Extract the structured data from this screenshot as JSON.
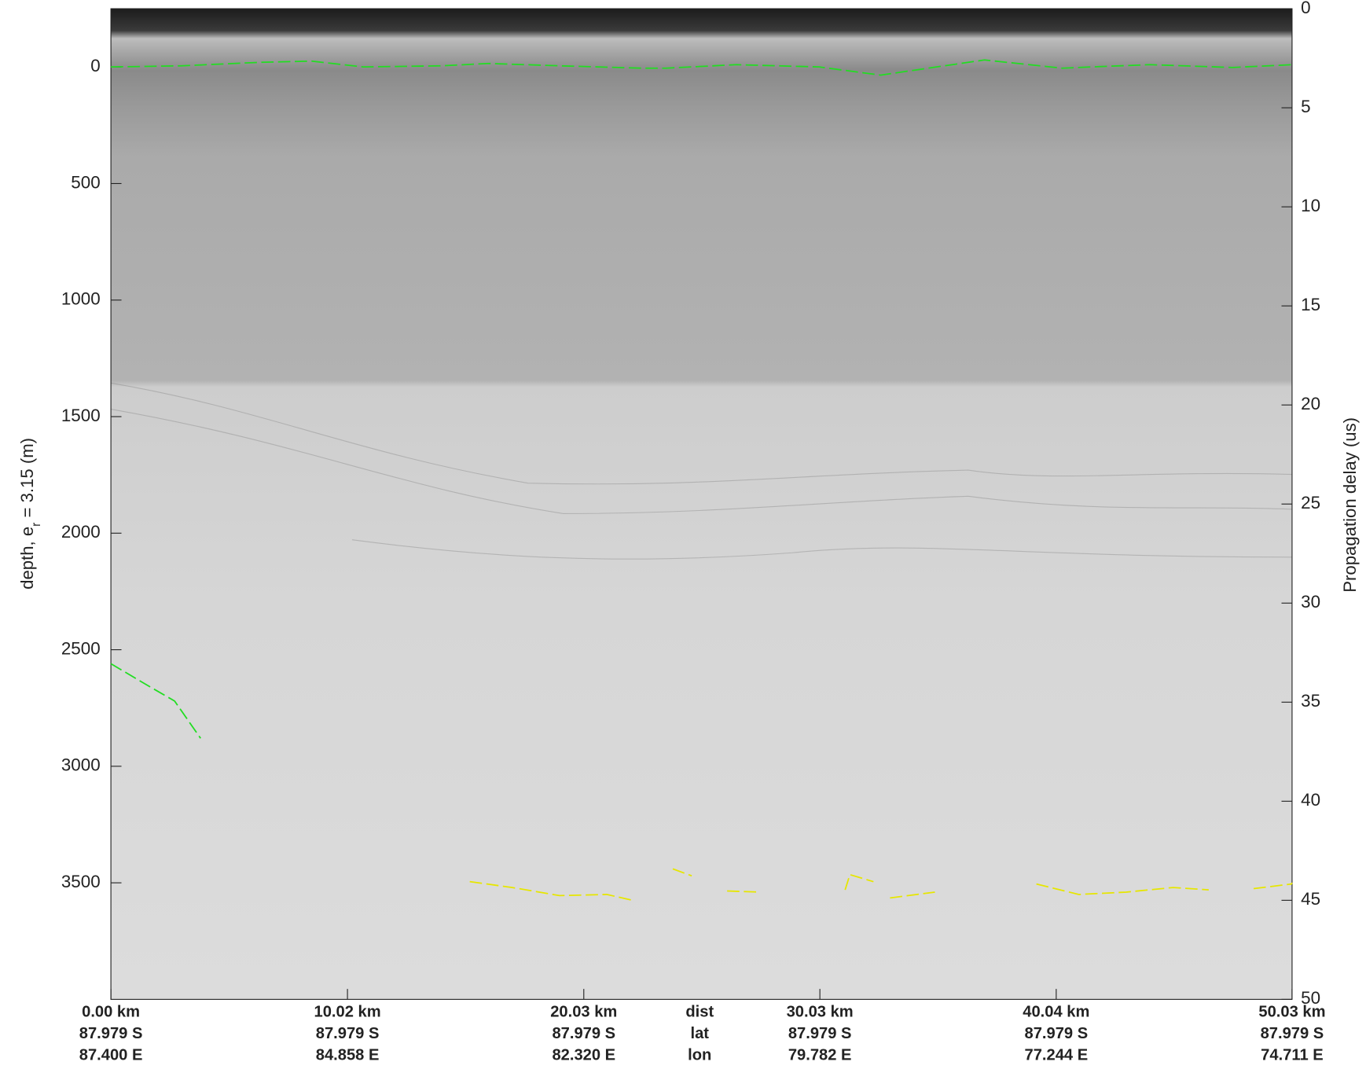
{
  "chart_data": {
    "type": "radargram",
    "ylabel": [
      "depth, e",
      "r",
      " = 3.15 (m)"
    ],
    "y2label": "Propagation delay (us)",
    "xlim": [
      0,
      50.03
    ],
    "xticks": [
      {
        "value": 0,
        "label": "0.00 km"
      },
      {
        "value": 10.02,
        "label": "10.02 km"
      },
      {
        "value": 20.03,
        "label": "20.03 km"
      },
      {
        "value": 30.03,
        "label": "30.03 km"
      },
      {
        "value": 40.04,
        "label": "40.04 km"
      },
      {
        "value": 50.03,
        "label": "50.03 km"
      }
    ],
    "lat_labels": [
      "87.979 S",
      "87.979 S",
      "87.979 S",
      "87.979 S",
      "87.979 S",
      "87.979 S"
    ],
    "lon_labels": [
      "87.400 E",
      "84.858 E",
      "82.320 E",
      "79.782 E",
      "77.244 E",
      "74.711 E"
    ],
    "row_titles": [
      "dist",
      "lat",
      "lon"
    ],
    "ylim": [
      -250,
      4000
    ],
    "yticks": [
      0,
      500,
      1000,
      1500,
      2000,
      2500,
      3000,
      3500
    ],
    "y2lim": [
      0,
      50
    ],
    "y2ticks": [
      0,
      5,
      10,
      15,
      20,
      25,
      30,
      35,
      40,
      45,
      50
    ],
    "series": [
      {
        "color": "#22dd22",
        "x": [
          0,
          3,
          6.3,
          8.5,
          10.7,
          14,
          16,
          19,
          22.5,
          23.5,
          26.5,
          30,
          32.6,
          37,
          40.3,
          41.5,
          44,
          47.5,
          50.03
        ],
        "values": [
          0,
          -5,
          -20,
          -25,
          0,
          -5,
          -15,
          -5,
          5,
          5,
          -10,
          0,
          35,
          -30,
          5,
          0,
          -10,
          2,
          -10
        ]
      },
      {
        "color": "#22dd22",
        "x": [
          0,
          1.5,
          2.7,
          3.8
        ],
        "values": [
          2560,
          2650,
          2720,
          2880
        ]
      },
      {
        "color": "#e6e600",
        "x": [
          15.2,
          17,
          19,
          21,
          22.1,
          null,
          23.8,
          24.6,
          null,
          26.1,
          27.5,
          null,
          31.1,
          31.3,
          32.3,
          null,
          33.0,
          34.9,
          null,
          39.2,
          41.0,
          43,
          45,
          46.5,
          null,
          48.4,
          50,
          50.03
        ],
        "values": [
          3495,
          3520,
          3555,
          3550,
          3575,
          null,
          3440,
          3470,
          null,
          3535,
          3540,
          null,
          3530,
          3465,
          3495,
          null,
          3565,
          3540,
          null,
          3505,
          3550,
          3540,
          3520,
          3530,
          null,
          3525,
          3505,
          3500
        ]
      }
    ]
  }
}
